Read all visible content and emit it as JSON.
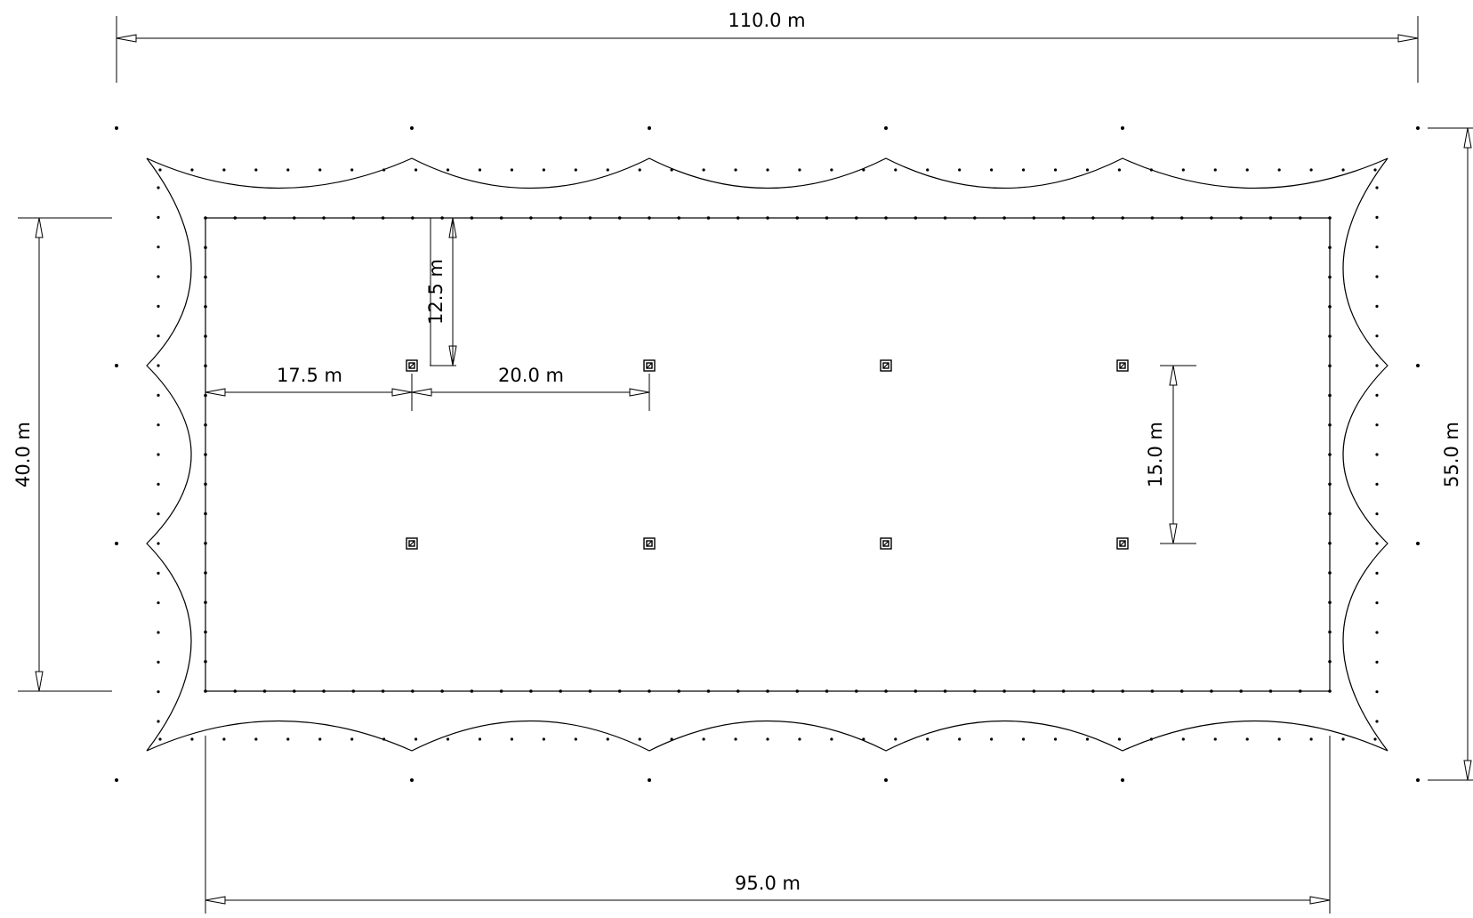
{
  "drawing": {
    "dimensions": {
      "overall_width": "110.0 m",
      "overall_height": "55.0 m",
      "floor_width": "95.0 m",
      "floor_height": "40.0 m",
      "column_offset_x": "17.5 m",
      "column_spacing_x": "20.0 m",
      "column_offset_y": "12.5 m",
      "column_spacing_y": "15.0 m"
    },
    "column_count": 8,
    "membrane_arches_per_long_side": 5,
    "membrane_arches_per_short_side": 3
  }
}
